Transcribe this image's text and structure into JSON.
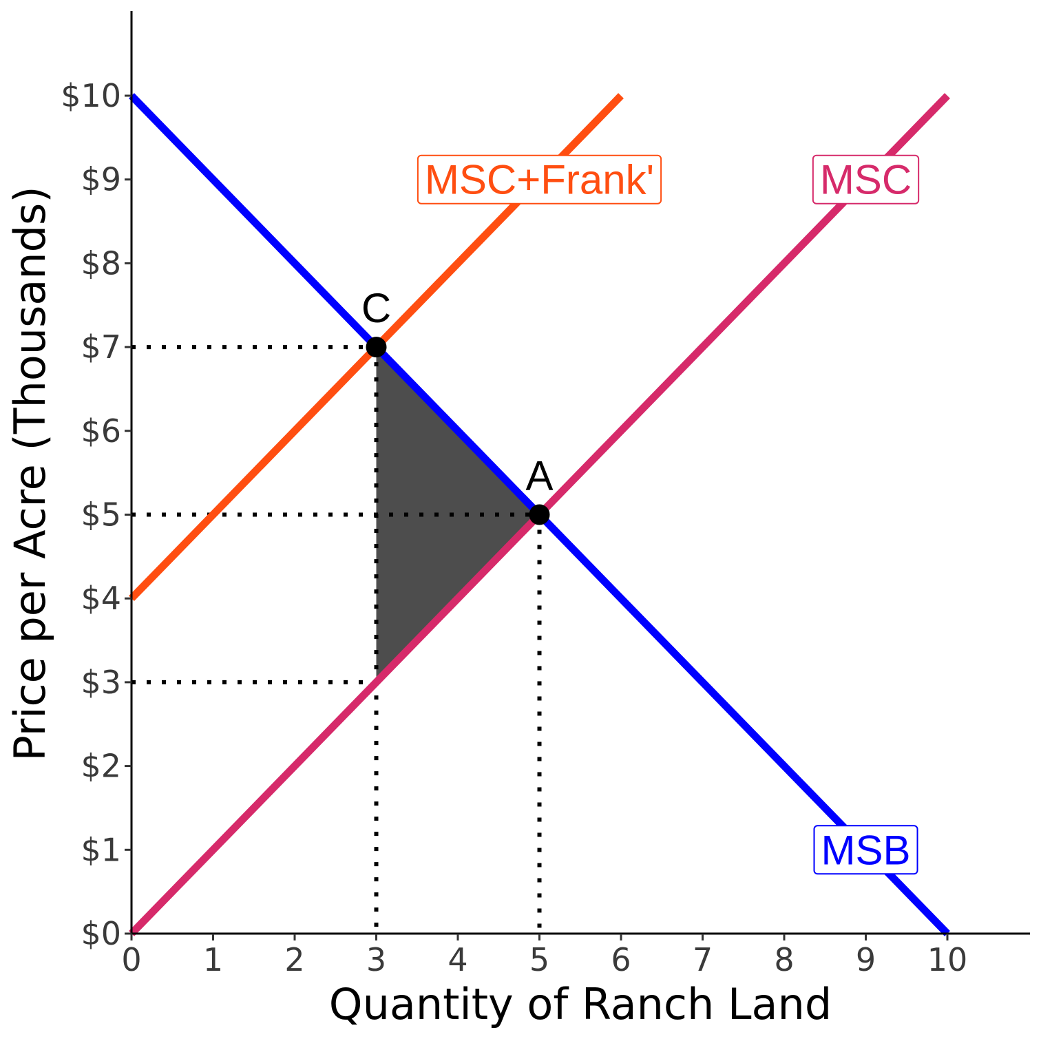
{
  "chart_data": {
    "type": "line",
    "xlabel": "Quantity of Ranch Land",
    "ylabel": "Price per Acre (Thousands)",
    "xlim": [
      0,
      11
    ],
    "ylim": [
      0,
      11
    ],
    "x_ticks": [
      0,
      1,
      2,
      3,
      4,
      5,
      6,
      7,
      8,
      9,
      10
    ],
    "x_tick_labels": [
      "0",
      "1",
      "2",
      "3",
      "4",
      "5",
      "6",
      "7",
      "8",
      "9",
      "10"
    ],
    "y_ticks": [
      0,
      1,
      2,
      3,
      4,
      5,
      6,
      7,
      8,
      9,
      10
    ],
    "y_tick_labels": [
      "$0",
      "$1",
      "$2",
      "$3",
      "$4",
      "$5",
      "$6",
      "$7",
      "$8",
      "$9",
      "$10"
    ],
    "grid": false,
    "series": [
      {
        "name": "MSB",
        "color": "#0000ff",
        "x": [
          0,
          10
        ],
        "y": [
          10,
          0
        ]
      },
      {
        "name": "MSC",
        "color": "#d62a6a",
        "x": [
          0,
          10
        ],
        "y": [
          0,
          10
        ]
      },
      {
        "name": "MSC+Frank'",
        "color": "#ff4e11",
        "x": [
          0,
          6
        ],
        "y": [
          4,
          10
        ]
      }
    ],
    "curve_labels": [
      {
        "text": "MSC+Frank'",
        "color": "#ff4e11",
        "x": 5.0,
        "y": 9
      },
      {
        "text": "MSC",
        "color": "#d62a6a",
        "x": 9.0,
        "y": 9
      },
      {
        "text": "MSB",
        "color": "#0000ff",
        "x": 9.0,
        "y": 1
      }
    ],
    "points": [
      {
        "label": "C",
        "x": 3,
        "y": 7
      },
      {
        "label": "A",
        "x": 5,
        "y": 5
      }
    ],
    "guides": [
      {
        "from": [
          0,
          7
        ],
        "to": [
          3,
          7
        ]
      },
      {
        "from": [
          0,
          5
        ],
        "to": [
          5,
          5
        ]
      },
      {
        "from": [
          0,
          3
        ],
        "to": [
          3,
          3
        ]
      },
      {
        "from": [
          3,
          7
        ],
        "to": [
          3,
          0
        ]
      },
      {
        "from": [
          5,
          5
        ],
        "to": [
          5,
          0
        ]
      }
    ],
    "shaded_region": {
      "color": "#4d4d4d",
      "x": [
        3,
        5,
        3
      ],
      "y": [
        7,
        5,
        3
      ]
    }
  }
}
